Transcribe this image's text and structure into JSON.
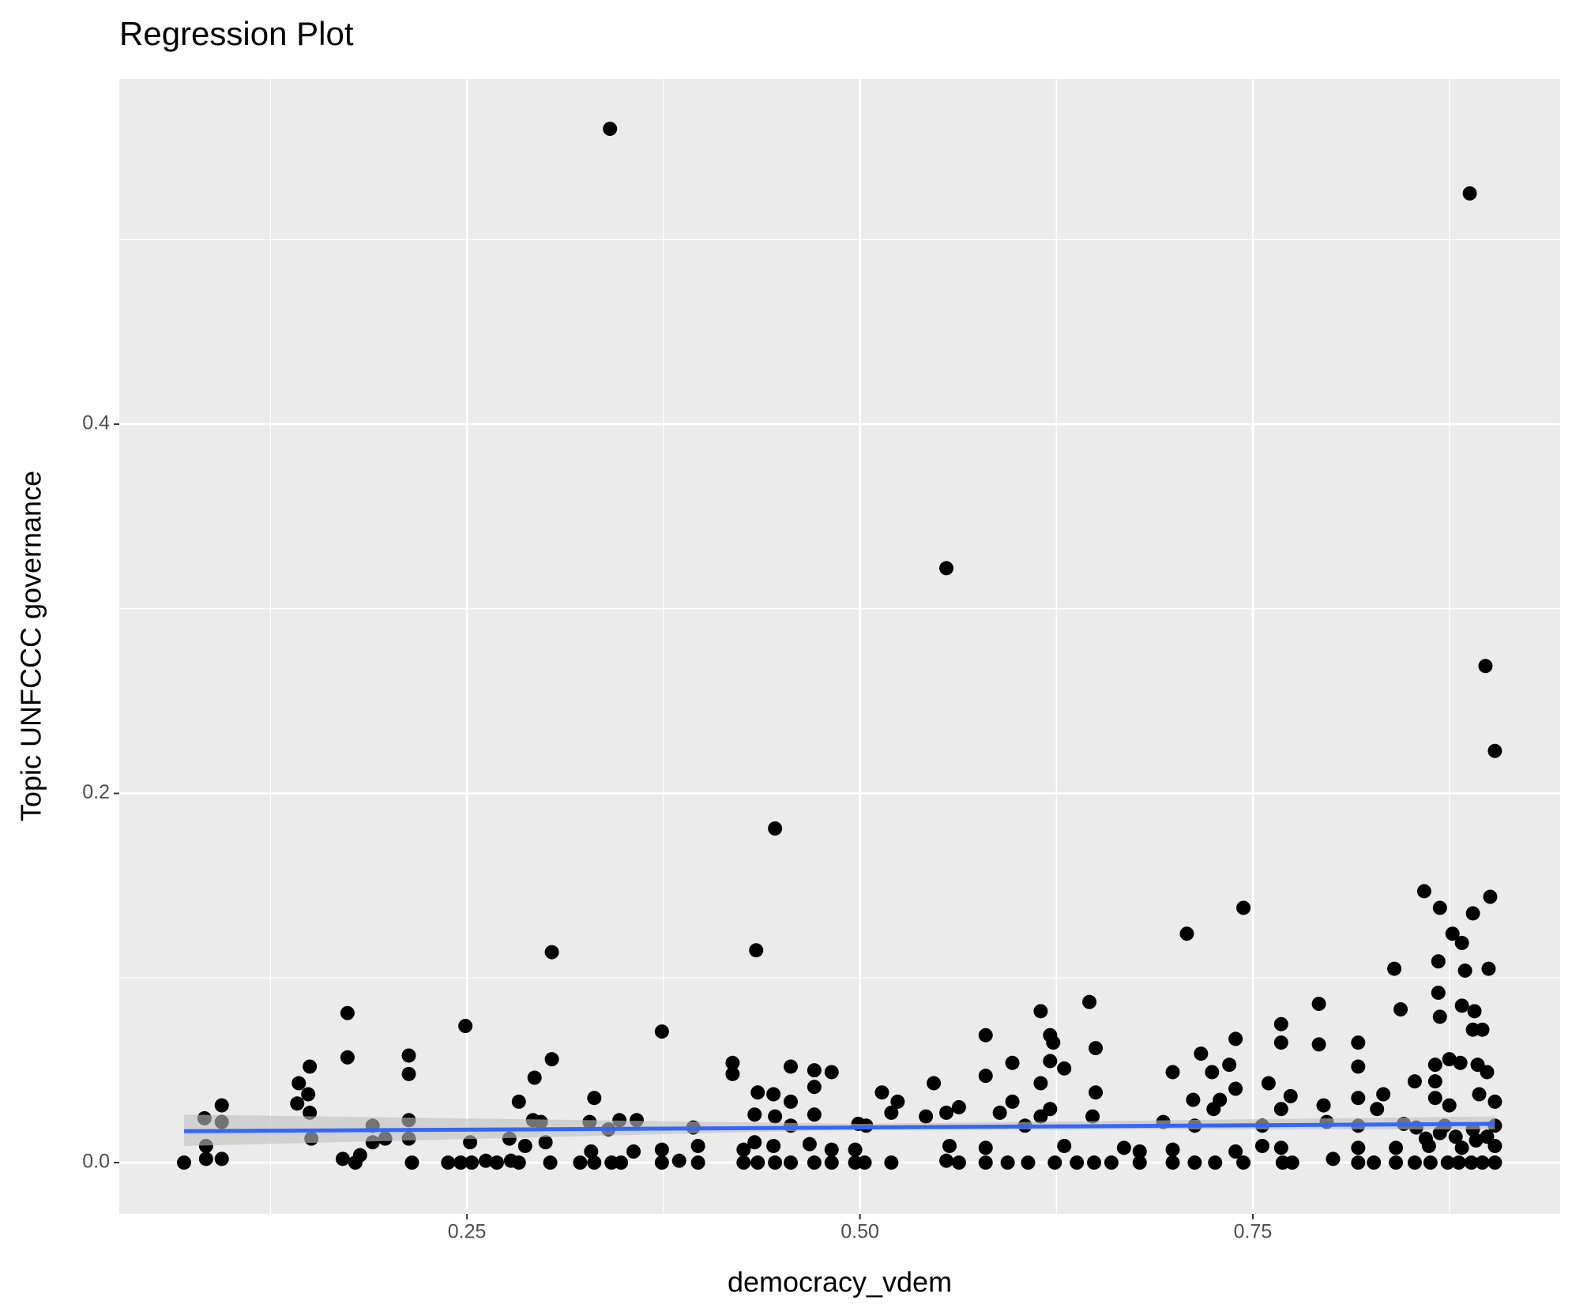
{
  "chart_data": {
    "type": "scatter",
    "title": "Regression Plot",
    "x_label": "democracy_vdem",
    "y_label": "Topic UNFCCC governance",
    "xlim": [
      0.0288,
      0.9455
    ],
    "ylim": [
      -0.0278,
      0.587
    ],
    "xticks": [
      {
        "value": 0.25,
        "label": "0.25"
      },
      {
        "value": 0.5,
        "label": "0.50"
      },
      {
        "value": 0.75,
        "label": "0.75"
      }
    ],
    "yticks": [
      {
        "value": 0,
        "label": "0.0"
      },
      0.2,
      0.4
    ],
    "minor_xticks": [
      0.125,
      0.375,
      0.625,
      0.875
    ],
    "minor_yticks": [
      0.1,
      0.3,
      0.5
    ],
    "grid": true,
    "color": "#000000",
    "fit_color": "#3366ff",
    "band_color": "#bfbfbf",
    "x": [
      0.341,
      0.888,
      0.555,
      0.898,
      0.904,
      0.446,
      0.859,
      0.901,
      0.744,
      0.869,
      0.89,
      0.708,
      0.877,
      0.883,
      0.304,
      0.434,
      0.868,
      0.84,
      0.885,
      0.9,
      0.792,
      0.646,
      0.868,
      0.883,
      0.174,
      0.615,
      0.844,
      0.891,
      0.869,
      0.249,
      0.768,
      0.374,
      0.89,
      0.896,
      0.58,
      0.621,
      0.739,
      0.768,
      0.792,
      0.817,
      0.65,
      0.623,
      0.717,
      0.174,
      0.213,
      0.304,
      0.419,
      0.597,
      0.621,
      0.817,
      0.15,
      0.456,
      0.63,
      0.735,
      0.875,
      0.866,
      0.882,
      0.893,
      0.899,
      0.471,
      0.482,
      0.699,
      0.213,
      0.419,
      0.58,
      0.724,
      0.293,
      0.853,
      0.547,
      0.615,
      0.143,
      0.76,
      0.866,
      0.471,
      0.739,
      0.435,
      0.445,
      0.65,
      0.833,
      0.894,
      0.149,
      0.331,
      0.514,
      0.774,
      0.795,
      0.817,
      0.712,
      0.729,
      0.283,
      0.456,
      0.524,
      0.597,
      0.904,
      0.094,
      0.142,
      0.829,
      0.563,
      0.621,
      0.768,
      0.555,
      0.15,
      0.52,
      0.589,
      0.725,
      0.433,
      0.446,
      0.471,
      0.542,
      0.615,
      0.648,
      0.693,
      0.083,
      0.292,
      0.347,
      0.358,
      0.328,
      0.094,
      0.213,
      0.297,
      0.756,
      0.19,
      0.797,
      0.817,
      0.846,
      0.904,
      0.499,
      0.504,
      0.605,
      0.713,
      0.394,
      0.34,
      0.456,
      0.854,
      0.872,
      0.89,
      0.151,
      0.198,
      0.213,
      0.252,
      0.277,
      0.287,
      0.3,
      0.397,
      0.433,
      0.445,
      0.468,
      0.482,
      0.497,
      0.557,
      0.58,
      0.63,
      0.668,
      0.678,
      0.699,
      0.739,
      0.756,
      0.768,
      0.817,
      0.841,
      0.862,
      0.883,
      0.904,
      0.084,
      0.329,
      0.356,
      0.374,
      0.426,
      0.19,
      0.07,
      0.084,
      0.094,
      0.171,
      0.179,
      0.182,
      0.215,
      0.238,
      0.246,
      0.253,
      0.262,
      0.269,
      0.278,
      0.283,
      0.303,
      0.322,
      0.331,
      0.342,
      0.348,
      0.374,
      0.385,
      0.397,
      0.426,
      0.435,
      0.446,
      0.456,
      0.471,
      0.482,
      0.497,
      0.503,
      0.52,
      0.555,
      0.563,
      0.58,
      0.594,
      0.607,
      0.624,
      0.638,
      0.649,
      0.66,
      0.678,
      0.699,
      0.713,
      0.726,
      0.744,
      0.769,
      0.775,
      0.801,
      0.817,
      0.827,
      0.841,
      0.853,
      0.863,
      0.874,
      0.881,
      0.889,
      0.896,
      0.904,
      0.86,
      0.869,
      0.879,
      0.892,
      0.899,
      0.875,
      0.866
    ],
    "values": [
      0.56,
      0.525,
      0.322,
      0.269,
      0.223,
      0.181,
      0.147,
      0.144,
      0.138,
      0.138,
      0.135,
      0.124,
      0.124,
      0.119,
      0.114,
      0.115,
      0.109,
      0.105,
      0.104,
      0.105,
      0.086,
      0.087,
      0.092,
      0.085,
      0.081,
      0.082,
      0.083,
      0.082,
      0.079,
      0.074,
      0.075,
      0.071,
      0.072,
      0.072,
      0.069,
      0.069,
      0.067,
      0.065,
      0.064,
      0.065,
      0.062,
      0.065,
      0.059,
      0.057,
      0.058,
      0.056,
      0.054,
      0.054,
      0.055,
      0.052,
      0.052,
      0.052,
      0.051,
      0.053,
      0.056,
      0.053,
      0.054,
      0.053,
      0.049,
      0.05,
      0.049,
      0.049,
      0.048,
      0.048,
      0.047,
      0.049,
      0.046,
      0.044,
      0.043,
      0.043,
      0.043,
      0.043,
      0.044,
      0.041,
      0.04,
      0.038,
      0.037,
      0.038,
      0.037,
      0.037,
      0.037,
      0.035,
      0.038,
      0.036,
      0.031,
      0.035,
      0.034,
      0.034,
      0.033,
      0.033,
      0.033,
      0.033,
      0.033,
      0.031,
      0.032,
      0.029,
      0.03,
      0.029,
      0.029,
      0.027,
      0.027,
      0.027,
      0.027,
      0.029,
      0.026,
      0.025,
      0.026,
      0.025,
      0.025,
      0.025,
      0.022,
      0.024,
      0.023,
      0.023,
      0.023,
      0.022,
      0.022,
      0.023,
      0.022,
      0.02,
      0.02,
      0.022,
      0.02,
      0.021,
      0.02,
      0.021,
      0.02,
      0.02,
      0.02,
      0.019,
      0.018,
      0.02,
      0.019,
      0.02,
      0.018,
      0.013,
      0.013,
      0.013,
      0.011,
      0.013,
      0.009,
      0.011,
      0.009,
      0.011,
      0.009,
      0.01,
      0.007,
      0.007,
      0.009,
      0.008,
      0.009,
      0.008,
      0.006,
      0.007,
      0.006,
      0.009,
      0.008,
      0.008,
      0.008,
      0.009,
      0.008,
      0.009,
      0.009,
      0.006,
      0.006,
      0.007,
      0.007,
      0.011,
      0,
      0.002,
      0.002,
      0.002,
      0,
      0.004,
      0,
      0,
      0,
      0,
      0.001,
      0,
      0.001,
      0,
      0,
      0,
      0,
      0,
      0,
      0,
      0.001,
      0,
      0,
      0,
      0,
      0,
      0,
      0,
      0,
      0,
      0,
      0.001,
      0,
      0,
      0,
      0,
      0,
      0,
      0,
      0,
      0,
      0,
      0,
      0,
      0,
      0,
      0,
      0.002,
      0,
      0,
      0,
      0,
      0,
      0,
      0,
      0,
      0,
      0,
      0.013,
      0.016,
      0.014,
      0.012,
      0.014,
      0.031,
      0.035
    ],
    "fit": {
      "x": [
        0.07,
        0.5,
        0.904
      ],
      "y": [
        0.017,
        0.019,
        0.021
      ],
      "lower": [
        0.009,
        0.018,
        0.018
      ],
      "upper": [
        0.026,
        0.021,
        0.025
      ]
    }
  }
}
